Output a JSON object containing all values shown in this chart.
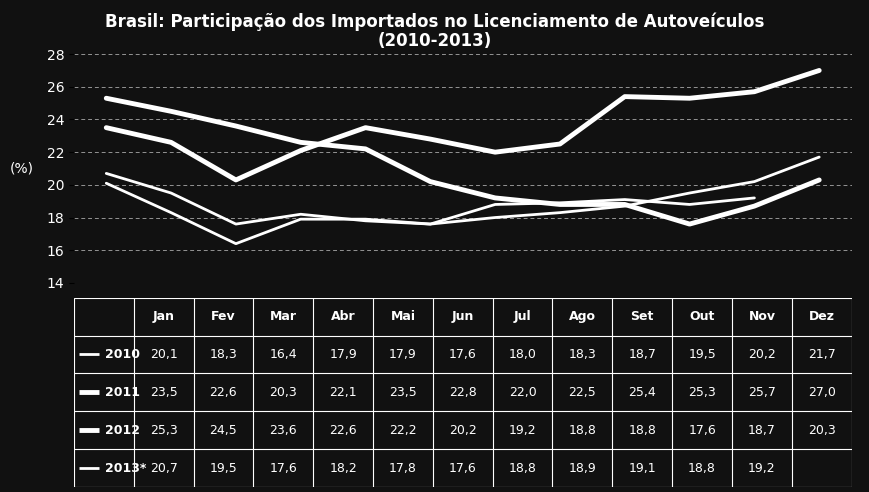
{
  "title_line1": "Brasil: Participação dos Importados no Licenciamento de Autoveículos",
  "title_line2": "(2010-2013)",
  "ylabel": "(%)",
  "months": [
    "Jan",
    "Fev",
    "Mar",
    "Abr",
    "Mai",
    "Jun",
    "Jul",
    "Ago",
    "Set",
    "Out",
    "Nov",
    "Dez"
  ],
  "series": {
    "2010": [
      20.1,
      18.3,
      16.4,
      17.9,
      17.9,
      17.6,
      18.0,
      18.3,
      18.7,
      19.5,
      20.2,
      21.7
    ],
    "2011": [
      23.5,
      22.6,
      20.3,
      22.1,
      23.5,
      22.8,
      22.0,
      22.5,
      25.4,
      25.3,
      25.7,
      27.0
    ],
    "2012": [
      25.3,
      24.5,
      23.6,
      22.6,
      22.2,
      20.2,
      19.2,
      18.8,
      18.8,
      17.6,
      18.7,
      20.3
    ],
    "2013*": [
      20.7,
      19.5,
      17.6,
      18.2,
      17.8,
      17.6,
      18.8,
      18.9,
      19.1,
      18.8,
      19.2,
      null
    ]
  },
  "line_widths": {
    "2010": 2.0,
    "2011": 3.5,
    "2012": 3.5,
    "2013*": 2.0
  },
  "ylim": [
    14,
    28
  ],
  "yticks": [
    14,
    16,
    18,
    20,
    22,
    24,
    26,
    28
  ],
  "background_color": "#111111",
  "text_color": "#ffffff",
  "grid_color": "#ffffff",
  "title_fontsize": 12,
  "axis_label_fontsize": 10,
  "tick_fontsize": 10,
  "table_fontsize": 9
}
